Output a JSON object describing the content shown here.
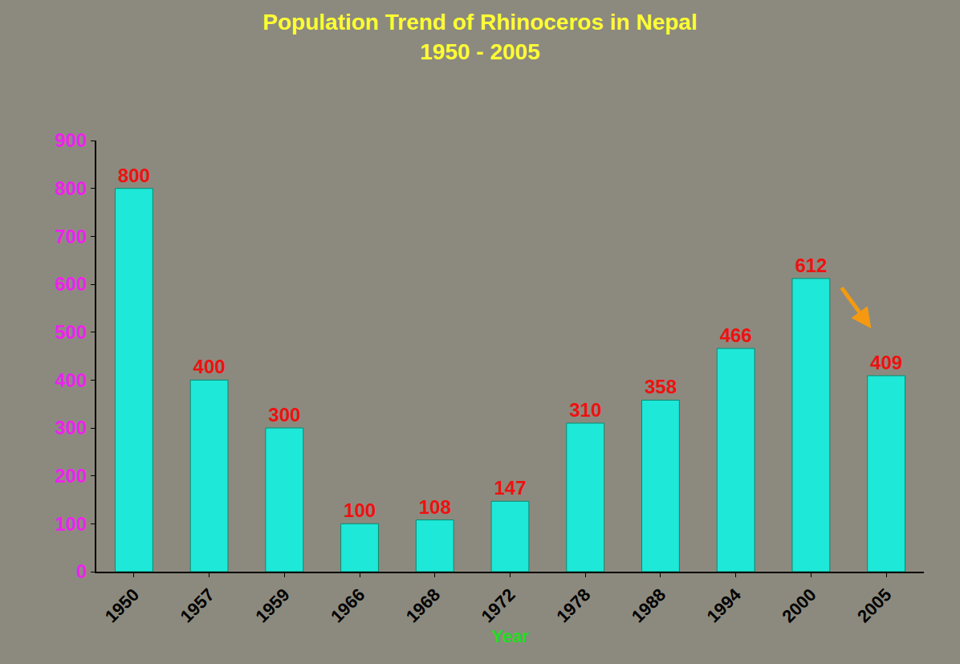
{
  "chart_data": {
    "type": "bar",
    "title": "Population Trend of Rhinoceros in Nepal",
    "subtitle": "1950 - 2005",
    "x_label": "Year",
    "categories": [
      "1950",
      "1957",
      "1959",
      "1966",
      "1968",
      "1972",
      "1978",
      "1988",
      "1994",
      "2000",
      "2005"
    ],
    "values": [
      800,
      400,
      300,
      100,
      108,
      147,
      310,
      358,
      466,
      612,
      409
    ],
    "color": "#1ee8d8",
    "ylim": [
      0,
      900
    ],
    "yticks": [
      0,
      100,
      200,
      300,
      400,
      500,
      600,
      700,
      800,
      900
    ],
    "grid": false,
    "data_labels": true
  }
}
